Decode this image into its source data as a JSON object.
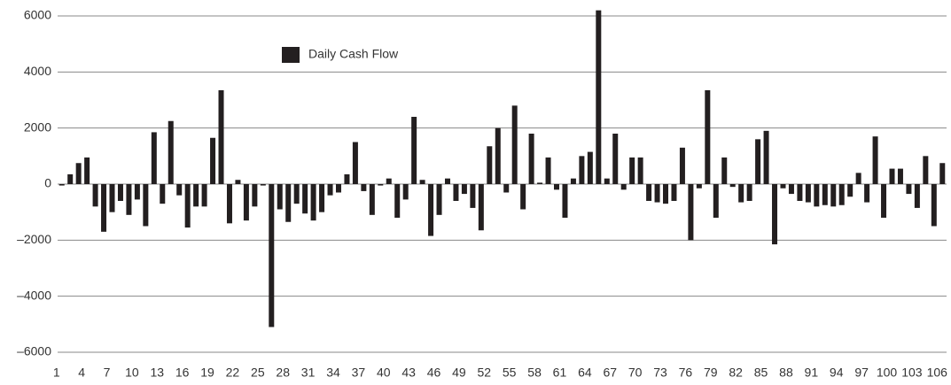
{
  "chart_data": {
    "type": "bar",
    "categories": [
      "1",
      null,
      null,
      "4",
      null,
      null,
      "7",
      null,
      null,
      "10",
      null,
      null,
      "13",
      null,
      null,
      "16",
      null,
      null,
      "19",
      null,
      null,
      "22",
      null,
      null,
      "25",
      null,
      null,
      "28",
      null,
      null,
      "31",
      null,
      null,
      "34",
      null,
      null,
      "37",
      null,
      null,
      "40",
      null,
      null,
      "43",
      null,
      null,
      "46",
      null,
      null,
      "49",
      null,
      null,
      "52",
      null,
      null,
      "55",
      null,
      null,
      "58",
      null,
      null,
      "61",
      null,
      null,
      "64",
      null,
      null,
      "67",
      null,
      null,
      "70",
      null,
      null,
      "73",
      null,
      null,
      "76",
      null,
      null,
      "79",
      null,
      null,
      "82",
      null,
      null,
      "85",
      null,
      null,
      "88",
      null,
      null,
      "91",
      null,
      null,
      "94",
      null,
      null,
      "97",
      null,
      null,
      "100",
      null,
      null,
      "103",
      null,
      null,
      "106"
    ],
    "series": [
      {
        "name": "Daily Cash Flow",
        "color": "#231f20",
        "values": [
          -50,
          350,
          750,
          950,
          -800,
          -1700,
          -1000,
          -600,
          -1100,
          -550,
          -1500,
          1850,
          -700,
          2250,
          -400,
          -1550,
          -800,
          -800,
          1650,
          3350,
          -1400,
          150,
          -1300,
          -800,
          -50,
          -5100,
          -900,
          -1350,
          -700,
          -1050,
          -1300,
          -1000,
          -400,
          -300,
          350,
          1500,
          -250,
          -1100,
          -50,
          200,
          -1200,
          -550,
          2400,
          150,
          -1850,
          -1100,
          200,
          -600,
          -350,
          -850,
          -1650,
          1350,
          2000,
          -300,
          2800,
          -900,
          1800,
          50,
          950,
          -200,
          -1200,
          200,
          1000,
          1150,
          6200,
          200,
          1800,
          -200,
          950,
          950,
          -600,
          -650,
          -700,
          -600,
          1300,
          -2000,
          -150,
          3350,
          -1200,
          950,
          -100,
          -650,
          -600,
          1600,
          1900,
          -2150,
          -150,
          -350,
          -600,
          -650,
          -800,
          -750,
          -800,
          -750,
          -450,
          400,
          -650,
          1700,
          -1200,
          550,
          550,
          -350,
          -850,
          1000,
          -1500,
          750
        ]
      }
    ],
    "ylim": [
      -6000,
      6000
    ],
    "yticks": [
      {
        "value": -6000,
        "label": "–6000"
      },
      {
        "value": -4000,
        "label": "–4000"
      },
      {
        "value": -2000,
        "label": "–2000"
      },
      0,
      2000,
      4000,
      6000
    ],
    "grid": true
  }
}
